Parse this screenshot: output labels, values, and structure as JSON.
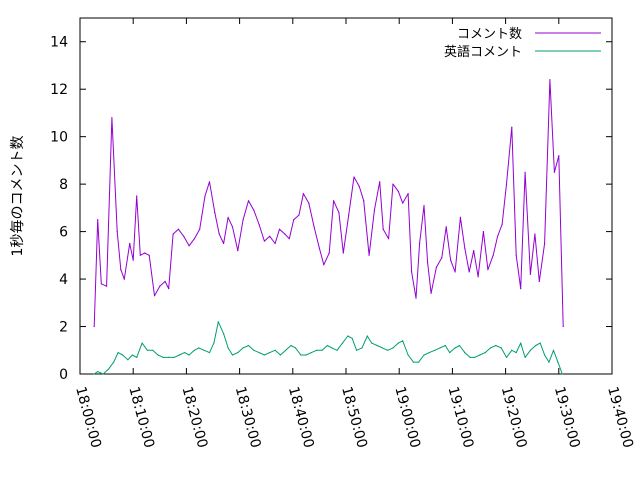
{
  "chart_data": {
    "type": "line",
    "title": "",
    "xlabel": "",
    "ylabel": "1秒毎のコメント数",
    "xlim": [
      "18:00:00",
      "19:40:00"
    ],
    "ylim": [
      0,
      15
    ],
    "x_ticks": [
      "18:00:00",
      "18:10:00",
      "18:20:00",
      "18:30:00",
      "18:40:00",
      "18:50:00",
      "19:00:00",
      "19:10:00",
      "19:20:00",
      "19:30:00",
      "19:40:00"
    ],
    "y_ticks": [
      0,
      2,
      4,
      6,
      8,
      10,
      12,
      14
    ],
    "grid": false,
    "legend_position": "top-right",
    "series": [
      {
        "name": "コメント数",
        "color": "#9400d3",
        "points": [
          [
            "18:02:40",
            2.0
          ],
          [
            "18:03:20",
            6.5
          ],
          [
            "18:04:00",
            3.8
          ],
          [
            "18:05:00",
            3.7
          ],
          [
            "18:06:00",
            10.8
          ],
          [
            "18:07:00",
            6.0
          ],
          [
            "18:07:40",
            4.4
          ],
          [
            "18:08:20",
            4.0
          ],
          [
            "18:09:20",
            5.5
          ],
          [
            "18:10:00",
            4.8
          ],
          [
            "18:10:40",
            7.5
          ],
          [
            "18:11:20",
            5.0
          ],
          [
            "18:12:10",
            5.1
          ],
          [
            "18:13:00",
            5.0
          ],
          [
            "18:14:00",
            3.3
          ],
          [
            "18:15:00",
            3.7
          ],
          [
            "18:16:00",
            3.9
          ],
          [
            "18:16:40",
            3.6
          ],
          [
            "18:17:30",
            5.9
          ],
          [
            "18:18:30",
            6.1
          ],
          [
            "18:19:30",
            5.8
          ],
          [
            "18:20:30",
            5.4
          ],
          [
            "18:21:30",
            5.7
          ],
          [
            "18:22:30",
            6.1
          ],
          [
            "18:23:30",
            7.5
          ],
          [
            "18:24:20",
            8.1
          ],
          [
            "18:25:20",
            6.8
          ],
          [
            "18:26:10",
            5.9
          ],
          [
            "18:27:00",
            5.5
          ],
          [
            "18:27:50",
            6.6
          ],
          [
            "18:28:40",
            6.2
          ],
          [
            "18:29:40",
            5.2
          ],
          [
            "18:30:40",
            6.5
          ],
          [
            "18:31:40",
            7.3
          ],
          [
            "18:32:40",
            6.9
          ],
          [
            "18:33:40",
            6.3
          ],
          [
            "18:34:40",
            5.6
          ],
          [
            "18:35:40",
            5.8
          ],
          [
            "18:36:40",
            5.5
          ],
          [
            "18:37:30",
            6.1
          ],
          [
            "18:38:30",
            5.9
          ],
          [
            "18:39:20",
            5.7
          ],
          [
            "18:40:10",
            6.5
          ],
          [
            "18:41:10",
            6.7
          ],
          [
            "18:42:00",
            7.6
          ],
          [
            "18:43:00",
            7.2
          ],
          [
            "18:44:00",
            6.2
          ],
          [
            "18:45:00",
            5.3
          ],
          [
            "18:45:50",
            4.6
          ],
          [
            "18:46:50",
            5.1
          ],
          [
            "18:47:40",
            7.3
          ],
          [
            "18:48:40",
            6.8
          ],
          [
            "18:49:30",
            5.1
          ],
          [
            "18:50:30",
            6.7
          ],
          [
            "18:51:30",
            8.3
          ],
          [
            "18:52:30",
            7.9
          ],
          [
            "18:53:20",
            7.3
          ],
          [
            "18:54:20",
            5.0
          ],
          [
            "18:55:20",
            6.9
          ],
          [
            "18:56:20",
            8.1
          ],
          [
            "18:57:00",
            6.1
          ],
          [
            "18:58:00",
            5.7
          ],
          [
            "18:58:50",
            8.0
          ],
          [
            "18:59:50",
            7.7
          ],
          [
            "19:00:40",
            7.2
          ],
          [
            "19:01:40",
            7.6
          ],
          [
            "19:02:20",
            4.3
          ],
          [
            "19:03:10",
            3.2
          ],
          [
            "19:03:50",
            5.5
          ],
          [
            "19:04:40",
            7.1
          ],
          [
            "19:05:20",
            4.7
          ],
          [
            "19:06:00",
            3.4
          ],
          [
            "19:07:00",
            4.5
          ],
          [
            "19:08:00",
            4.9
          ],
          [
            "19:08:50",
            6.2
          ],
          [
            "19:09:40",
            4.8
          ],
          [
            "19:10:30",
            4.3
          ],
          [
            "19:11:30",
            6.6
          ],
          [
            "19:12:20",
            5.3
          ],
          [
            "19:13:10",
            4.3
          ],
          [
            "19:14:00",
            5.2
          ],
          [
            "19:14:50",
            4.1
          ],
          [
            "19:15:50",
            6.0
          ],
          [
            "19:16:40",
            4.4
          ],
          [
            "19:17:40",
            5.0
          ],
          [
            "19:18:30",
            5.8
          ],
          [
            "19:19:20",
            6.3
          ],
          [
            "19:20:10",
            8.0
          ],
          [
            "19:21:10",
            10.4
          ],
          [
            "19:22:00",
            5.0
          ],
          [
            "19:22:50",
            3.6
          ],
          [
            "19:23:40",
            8.5
          ],
          [
            "19:24:40",
            4.2
          ],
          [
            "19:25:30",
            5.9
          ],
          [
            "19:26:20",
            3.9
          ],
          [
            "19:27:20",
            5.5
          ],
          [
            "19:28:20",
            12.4
          ],
          [
            "19:29:10",
            8.5
          ],
          [
            "19:30:00",
            9.2
          ],
          [
            "19:30:50",
            2.0
          ]
        ]
      },
      {
        "name": "英語コメント",
        "color": "#009e73",
        "points": [
          [
            "18:02:40",
            0.0
          ],
          [
            "18:03:20",
            0.1
          ],
          [
            "18:04:20",
            0.0
          ],
          [
            "18:05:20",
            0.2
          ],
          [
            "18:06:20",
            0.5
          ],
          [
            "18:07:10",
            0.9
          ],
          [
            "18:08:00",
            0.8
          ],
          [
            "18:09:00",
            0.6
          ],
          [
            "18:09:50",
            0.8
          ],
          [
            "18:10:40",
            0.7
          ],
          [
            "18:11:40",
            1.3
          ],
          [
            "18:12:40",
            1.0
          ],
          [
            "18:13:40",
            1.0
          ],
          [
            "18:14:40",
            0.8
          ],
          [
            "18:15:40",
            0.7
          ],
          [
            "18:16:40",
            0.7
          ],
          [
            "18:17:40",
            0.7
          ],
          [
            "18:18:40",
            0.8
          ],
          [
            "18:19:40",
            0.9
          ],
          [
            "18:20:30",
            0.8
          ],
          [
            "18:21:30",
            1.0
          ],
          [
            "18:22:20",
            1.1
          ],
          [
            "18:23:20",
            1.0
          ],
          [
            "18:24:20",
            0.9
          ],
          [
            "18:25:10",
            1.3
          ],
          [
            "18:26:00",
            2.2
          ],
          [
            "18:27:00",
            1.7
          ],
          [
            "18:27:50",
            1.1
          ],
          [
            "18:28:40",
            0.8
          ],
          [
            "18:29:40",
            0.9
          ],
          [
            "18:30:40",
            1.1
          ],
          [
            "18:31:40",
            1.2
          ],
          [
            "18:32:40",
            1.0
          ],
          [
            "18:33:40",
            0.9
          ],
          [
            "18:34:40",
            0.8
          ],
          [
            "18:35:40",
            0.9
          ],
          [
            "18:36:40",
            1.0
          ],
          [
            "18:37:40",
            0.8
          ],
          [
            "18:38:40",
            1.0
          ],
          [
            "18:39:40",
            1.2
          ],
          [
            "18:40:30",
            1.1
          ],
          [
            "18:41:30",
            0.8
          ],
          [
            "18:42:30",
            0.8
          ],
          [
            "18:43:30",
            0.9
          ],
          [
            "18:44:30",
            1.0
          ],
          [
            "18:45:30",
            1.0
          ],
          [
            "18:46:30",
            1.2
          ],
          [
            "18:47:20",
            1.1
          ],
          [
            "18:48:20",
            1.0
          ],
          [
            "18:49:20",
            1.3
          ],
          [
            "18:50:20",
            1.6
          ],
          [
            "18:51:10",
            1.5
          ],
          [
            "18:52:00",
            1.0
          ],
          [
            "18:53:00",
            1.1
          ],
          [
            "18:54:00",
            1.6
          ],
          [
            "18:54:50",
            1.3
          ],
          [
            "18:55:50",
            1.2
          ],
          [
            "18:56:50",
            1.1
          ],
          [
            "18:57:50",
            1.0
          ],
          [
            "18:58:50",
            1.1
          ],
          [
            "18:59:50",
            1.3
          ],
          [
            "19:00:40",
            1.4
          ],
          [
            "19:01:40",
            0.8
          ],
          [
            "19:02:40",
            0.5
          ],
          [
            "19:03:40",
            0.5
          ],
          [
            "19:04:40",
            0.8
          ],
          [
            "19:05:40",
            0.9
          ],
          [
            "19:06:40",
            1.0
          ],
          [
            "19:07:40",
            1.1
          ],
          [
            "19:08:40",
            1.2
          ],
          [
            "19:09:30",
            0.9
          ],
          [
            "19:10:30",
            1.1
          ],
          [
            "19:11:20",
            1.2
          ],
          [
            "19:12:20",
            0.9
          ],
          [
            "19:13:20",
            0.7
          ],
          [
            "19:14:10",
            0.7
          ],
          [
            "19:15:10",
            0.8
          ],
          [
            "19:16:10",
            0.9
          ],
          [
            "19:17:10",
            1.1
          ],
          [
            "19:18:10",
            1.2
          ],
          [
            "19:19:10",
            1.1
          ],
          [
            "19:20:10",
            0.7
          ],
          [
            "19:21:10",
            1.0
          ],
          [
            "19:22:00",
            0.9
          ],
          [
            "19:22:50",
            1.3
          ],
          [
            "19:23:40",
            0.7
          ],
          [
            "19:24:40",
            1.0
          ],
          [
            "19:25:40",
            1.2
          ],
          [
            "19:26:30",
            1.3
          ],
          [
            "19:27:20",
            0.8
          ],
          [
            "19:28:10",
            0.5
          ],
          [
            "19:29:00",
            1.0
          ],
          [
            "19:29:50",
            0.5
          ],
          [
            "19:30:40",
            0.0
          ]
        ]
      }
    ]
  }
}
